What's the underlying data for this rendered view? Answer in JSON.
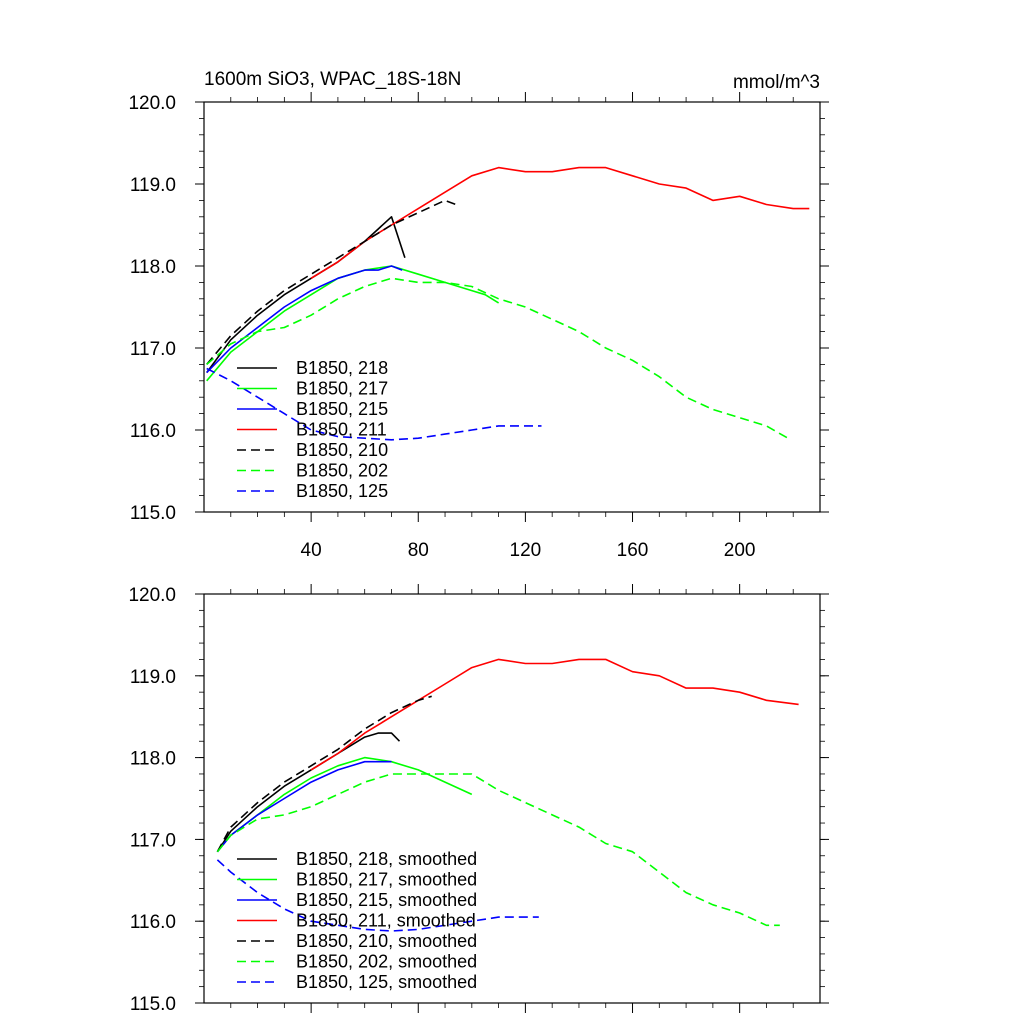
{
  "chart_data": [
    {
      "type": "line",
      "title": "1600m SiO3, WPAC_18S-18N",
      "units": "mmol/m^3",
      "xlim": [
        0,
        230
      ],
      "ylim": [
        115.0,
        120.0
      ],
      "xticks": [
        40,
        80,
        120,
        160,
        200
      ],
      "xtick_labels": [
        "40",
        "80",
        "120",
        "160",
        "200"
      ],
      "yticks": [
        115.0,
        116.0,
        117.0,
        118.0,
        119.0,
        120.0
      ],
      "ytick_labels": [
        "115.0",
        "116.0",
        "117.0",
        "118.0",
        "119.0",
        "120.0"
      ],
      "legend_position": "bottom-left",
      "series": [
        {
          "name": "B1850, 218",
          "color": "#000000",
          "dash": "solid",
          "x": [
            1,
            10,
            20,
            30,
            40,
            50,
            60,
            65,
            70,
            75
          ],
          "values": [
            116.7,
            117.1,
            117.4,
            117.65,
            117.85,
            118.05,
            118.3,
            118.45,
            118.6,
            118.1
          ]
        },
        {
          "name": "B1850, 217",
          "color": "#00ff00",
          "dash": "solid",
          "x": [
            1,
            10,
            20,
            30,
            40,
            50,
            60,
            70,
            80,
            90,
            100,
            105,
            110
          ],
          "values": [
            116.6,
            116.95,
            117.2,
            117.45,
            117.65,
            117.85,
            117.95,
            118.0,
            117.9,
            117.8,
            117.7,
            117.65,
            117.55
          ]
        },
        {
          "name": "B1850, 215",
          "color": "#0000ff",
          "dash": "solid",
          "x": [
            1,
            10,
            20,
            30,
            40,
            50,
            60,
            65,
            70,
            74
          ],
          "values": [
            116.7,
            117.0,
            117.25,
            117.5,
            117.7,
            117.85,
            117.95,
            117.95,
            118.0,
            117.95
          ]
        },
        {
          "name": "B1850, 211",
          "color": "#ff0000",
          "dash": "solid",
          "x": [
            40,
            50,
            60,
            70,
            80,
            90,
            100,
            110,
            120,
            130,
            140,
            150,
            160,
            170,
            180,
            190,
            200,
            210,
            220,
            226
          ],
          "values": [
            117.85,
            118.05,
            118.3,
            118.5,
            118.7,
            118.9,
            119.1,
            119.2,
            119.15,
            119.15,
            119.2,
            119.2,
            119.1,
            119.0,
            118.95,
            118.8,
            118.85,
            118.75,
            118.7,
            118.7
          ]
        },
        {
          "name": "B1850, 210",
          "color": "#000000",
          "dash": "dash",
          "x": [
            1,
            10,
            20,
            30,
            40,
            50,
            60,
            70,
            80,
            90,
            94
          ],
          "values": [
            116.8,
            117.15,
            117.45,
            117.7,
            117.9,
            118.1,
            118.3,
            118.5,
            118.65,
            118.8,
            118.75
          ]
        },
        {
          "name": "B1850, 202",
          "color": "#00ff00",
          "dash": "dash",
          "x": [
            1,
            10,
            20,
            30,
            40,
            50,
            60,
            70,
            80,
            90,
            100,
            110,
            120,
            130,
            140,
            150,
            160,
            170,
            180,
            190,
            200,
            210,
            218
          ],
          "values": [
            116.8,
            117.05,
            117.2,
            117.25,
            117.4,
            117.6,
            117.75,
            117.85,
            117.8,
            117.8,
            117.75,
            117.6,
            117.5,
            117.35,
            117.2,
            117.0,
            116.85,
            116.65,
            116.4,
            116.25,
            116.15,
            116.05,
            115.9
          ]
        },
        {
          "name": "B1850, 125",
          "color": "#0000ff",
          "dash": "dash",
          "x": [
            1,
            10,
            20,
            30,
            40,
            50,
            60,
            70,
            80,
            90,
            100,
            110,
            120,
            126
          ],
          "values": [
            116.75,
            116.6,
            116.4,
            116.2,
            116.0,
            115.92,
            115.9,
            115.88,
            115.9,
            115.95,
            116.0,
            116.05,
            116.05,
            116.05
          ]
        }
      ]
    },
    {
      "type": "line",
      "title": "",
      "xlim": [
        0,
        230
      ],
      "ylim": [
        115.0,
        120.0
      ],
      "xticks": [
        40,
        80,
        120,
        160,
        200
      ],
      "yticks": [
        115.0,
        116.0,
        117.0,
        118.0,
        119.0,
        120.0
      ],
      "ytick_labels": [
        "115.0",
        "116.0",
        "117.0",
        "118.0",
        "119.0",
        "120.0"
      ],
      "legend_position": "bottom-left",
      "series": [
        {
          "name": "B1850, 218, smoothed",
          "color": "#000000",
          "dash": "solid",
          "x": [
            5,
            10,
            20,
            30,
            40,
            50,
            60,
            65,
            70,
            73
          ],
          "values": [
            116.85,
            117.1,
            117.4,
            117.65,
            117.85,
            118.05,
            118.25,
            118.3,
            118.3,
            118.2
          ]
        },
        {
          "name": "B1850, 217, smoothed",
          "color": "#00ff00",
          "dash": "solid",
          "x": [
            5,
            10,
            20,
            30,
            40,
            50,
            60,
            70,
            80,
            90,
            100
          ],
          "values": [
            116.85,
            117.05,
            117.3,
            117.55,
            117.75,
            117.9,
            118.0,
            117.95,
            117.85,
            117.7,
            117.55
          ]
        },
        {
          "name": "B1850, 215, smoothed",
          "color": "#0000ff",
          "dash": "solid",
          "x": [
            5,
            10,
            20,
            30,
            40,
            50,
            60,
            65,
            70
          ],
          "values": [
            116.85,
            117.05,
            117.3,
            117.5,
            117.7,
            117.85,
            117.95,
            117.95,
            117.95
          ]
        },
        {
          "name": "B1850, 211, smoothed",
          "color": "#ff0000",
          "dash": "solid",
          "x": [
            40,
            50,
            60,
            70,
            80,
            90,
            100,
            110,
            120,
            130,
            140,
            150,
            160,
            170,
            180,
            190,
            200,
            210,
            222
          ],
          "values": [
            117.85,
            118.05,
            118.3,
            118.5,
            118.7,
            118.9,
            119.1,
            119.2,
            119.15,
            119.15,
            119.2,
            119.2,
            119.05,
            119.0,
            118.85,
            118.85,
            118.8,
            118.7,
            118.65
          ]
        },
        {
          "name": "B1850, 210, smoothed",
          "color": "#000000",
          "dash": "dash",
          "x": [
            5,
            10,
            20,
            30,
            40,
            50,
            60,
            70,
            80,
            85
          ],
          "values": [
            116.85,
            117.15,
            117.45,
            117.7,
            117.9,
            118.1,
            118.35,
            118.55,
            118.7,
            118.75
          ]
        },
        {
          "name": "B1850, 202, smoothed",
          "color": "#00ff00",
          "dash": "dash",
          "x": [
            5,
            10,
            20,
            30,
            40,
            50,
            60,
            70,
            80,
            90,
            100,
            110,
            120,
            130,
            140,
            150,
            160,
            170,
            180,
            190,
            200,
            210,
            215
          ],
          "values": [
            116.85,
            117.05,
            117.25,
            117.3,
            117.4,
            117.55,
            117.7,
            117.8,
            117.8,
            117.8,
            117.8,
            117.6,
            117.45,
            117.3,
            117.15,
            116.95,
            116.85,
            116.6,
            116.35,
            116.2,
            116.1,
            115.95,
            115.95
          ]
        },
        {
          "name": "B1850, 125, smoothed",
          "color": "#0000ff",
          "dash": "dash",
          "x": [
            5,
            10,
            20,
            30,
            40,
            50,
            60,
            70,
            80,
            90,
            100,
            110,
            120,
            125
          ],
          "values": [
            116.75,
            116.6,
            116.35,
            116.15,
            116.0,
            115.95,
            115.9,
            115.88,
            115.9,
            115.95,
            116.0,
            116.05,
            116.05,
            116.05
          ]
        }
      ]
    }
  ]
}
